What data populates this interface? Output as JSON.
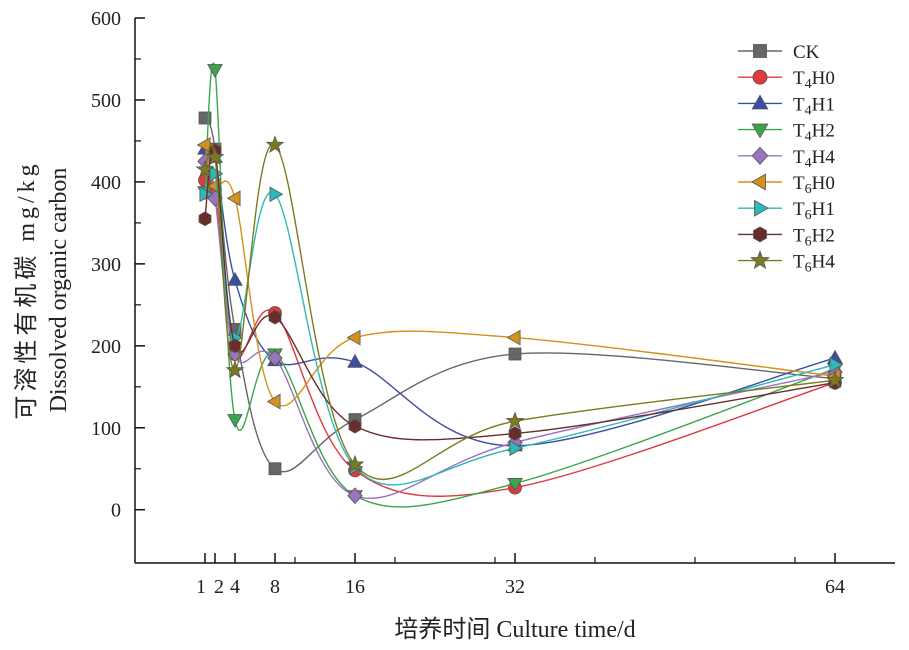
{
  "chart_data": {
    "type": "line",
    "xlabel": "培养时间 Culture time/d",
    "ylabel_cn": "可溶性有机碳 mg/kg",
    "ylabel_en": "Dissolved organic carbon",
    "x": [
      1,
      2,
      4,
      8,
      16,
      32,
      64
    ],
    "x_tick_labels": [
      "1",
      "2",
      "4",
      "8",
      "16",
      "32",
      "64"
    ],
    "ylim": [
      -65,
      600
    ],
    "yticks": [
      0,
      100,
      200,
      300,
      400,
      500,
      600
    ],
    "xlim": [
      -6,
      70
    ],
    "grid": false,
    "legend_position": "top-right",
    "series": [
      {
        "name": "CK",
        "legend": [
          "CK",
          "",
          ""
        ],
        "color": "#666666",
        "marker": "square",
        "values": [
          478,
          440,
          220,
          50,
          110,
          190,
          160
        ]
      },
      {
        "name": "T4H0",
        "legend": [
          "T",
          "4",
          "H0"
        ],
        "color": "#e0383e",
        "marker": "circle",
        "values": [
          402,
          390,
          190,
          240,
          48,
          27,
          155
        ]
      },
      {
        "name": "T4H1",
        "legend": [
          "T",
          "4",
          "H1"
        ],
        "color": "#3b4fa2",
        "marker": "triangle-up",
        "values": [
          440,
          430,
          280,
          182,
          180,
          78,
          185
        ]
      },
      {
        "name": "T4H2",
        "legend": [
          "T",
          "4",
          "H2"
        ],
        "color": "#3aa64a",
        "marker": "triangle-down",
        "values": [
          388,
          537,
          110,
          190,
          17,
          32,
          172
        ]
      },
      {
        "name": "T4H4",
        "legend": [
          "T",
          "4",
          "H4"
        ],
        "color": "#9b72c0",
        "marker": "diamond",
        "values": [
          425,
          380,
          190,
          185,
          17,
          82,
          168
        ]
      },
      {
        "name": "T6H0",
        "legend": [
          "T",
          "6",
          "H0"
        ],
        "color": "#d4911e",
        "marker": "triangle-left",
        "values": [
          445,
          395,
          380,
          132,
          210,
          210,
          163
        ]
      },
      {
        "name": "T6H1",
        "legend": [
          "T",
          "6",
          "H1"
        ],
        "color": "#2fb8b8",
        "marker": "triangle-right",
        "values": [
          385,
          410,
          210,
          385,
          52,
          75,
          177
        ]
      },
      {
        "name": "T6H2",
        "legend": [
          "T",
          "6",
          "H2"
        ],
        "color": "#6b2c2c",
        "marker": "hexagon",
        "values": [
          355,
          438,
          200,
          235,
          102,
          93,
          155
        ]
      },
      {
        "name": "T6H4",
        "legend": [
          "T",
          "6",
          "H4"
        ],
        "color": "#7d7a1e",
        "marker": "star",
        "values": [
          415,
          430,
          170,
          445,
          55,
          108,
          158
        ]
      }
    ]
  }
}
